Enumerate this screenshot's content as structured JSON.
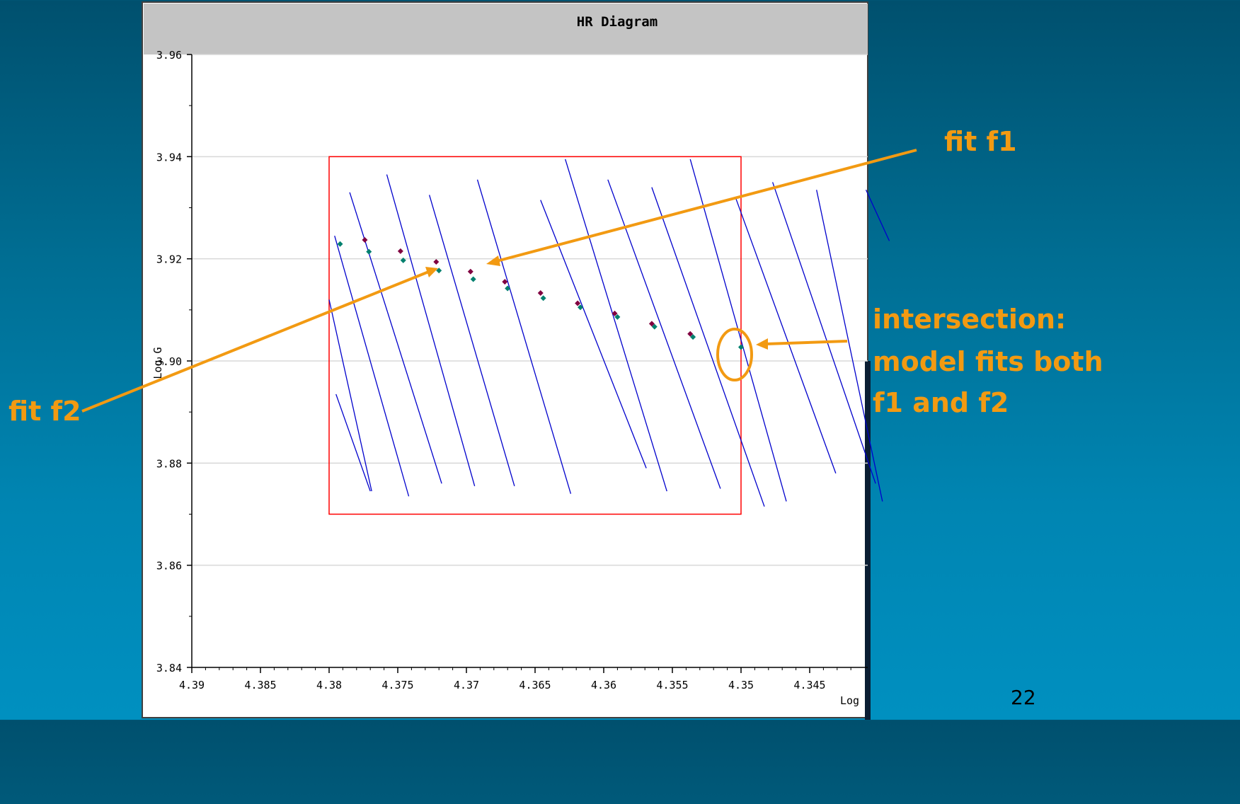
{
  "colors": {
    "background_top": "#00506e",
    "background_bottom": "#0090c0",
    "plot_panel": "#ffffff",
    "header_gray": "#c0c0c0",
    "grid": "#d8d8d8",
    "fit_line": "#0000cc",
    "box": "#ff0000",
    "point_f1": "#800040",
    "point_f2": "#00806e",
    "callout": "#f29a12",
    "page_number": "#000000"
  },
  "window": {
    "title": "HR Diagram"
  },
  "chart_data": {
    "type": "line",
    "title": "HR Diagram",
    "xlabel": "Log",
    "ylabel": "Log G",
    "xlim": [
      4.39,
      4.341
    ],
    "ylim": [
      3.84,
      3.96
    ],
    "x_axis_reversed": true,
    "grid": "horizontal",
    "x_ticks": [
      "4.39",
      "4.385",
      "4.38",
      "4.375",
      "4.37",
      "4.365",
      "4.36",
      "4.355",
      "4.35",
      "4.345"
    ],
    "y_ticks": [
      "3.84",
      "3.86",
      "3.88",
      "3.90",
      "3.92",
      "3.94",
      "3.96"
    ],
    "box": {
      "x": [
        4.38,
        4.35
      ],
      "y": [
        3.87,
        3.94
      ]
    },
    "lines": [
      [
        [
          4.38,
          3.912
        ],
        [
          4.3769,
          3.8745
        ]
      ],
      [
        [
          4.3796,
          3.9245
        ],
        [
          4.3742,
          3.8735
        ]
      ],
      [
        [
          4.3785,
          3.933
        ],
        [
          4.3718,
          3.876
        ]
      ],
      [
        [
          4.3758,
          3.9365
        ],
        [
          4.3694,
          3.8755
        ]
      ],
      [
        [
          4.3727,
          3.9325
        ],
        [
          4.3665,
          3.8755
        ]
      ],
      [
        [
          4.3692,
          3.9355
        ],
        [
          4.3624,
          3.874
        ]
      ],
      [
        [
          4.3646,
          3.9315
        ],
        [
          4.3569,
          3.879
        ]
      ],
      [
        [
          4.3628,
          3.9395
        ],
        [
          4.3554,
          3.8745
        ]
      ],
      [
        [
          4.3597,
          3.9355
        ],
        [
          4.3515,
          3.875
        ]
      ],
      [
        [
          4.3565,
          3.934
        ],
        [
          4.3483,
          3.8715
        ]
      ],
      [
        [
          4.3537,
          3.9395
        ],
        [
          4.3467,
          3.8725
        ]
      ],
      [
        [
          4.3504,
          3.932
        ],
        [
          4.3431,
          3.878
        ]
      ],
      [
        [
          4.3477,
          3.935
        ],
        [
          4.3402,
          3.876
        ]
      ],
      [
        [
          4.3445,
          3.9335
        ],
        [
          4.3397,
          3.8725
        ]
      ],
      [
        [
          4.3409,
          3.9335
        ],
        [
          4.3392,
          3.9235
        ]
      ],
      [
        [
          4.3795,
          3.8935
        ],
        [
          4.377,
          3.8745
        ]
      ]
    ],
    "series": [
      {
        "name": "f1",
        "x": [
          4.3774,
          4.3748,
          4.3722,
          4.3697,
          4.3672,
          4.3646,
          4.3619,
          4.3592,
          4.3565,
          4.3537
        ],
        "y": [
          3.9237,
          3.9215,
          3.9194,
          3.9175,
          3.9155,
          3.9133,
          3.9113,
          3.9093,
          3.9073,
          3.9053
        ]
      },
      {
        "name": "f2",
        "x": [
          4.3792,
          4.3771,
          4.3746,
          4.372,
          4.3695,
          4.367,
          4.3644,
          4.3617,
          4.359,
          4.3563,
          4.3535,
          4.35
        ],
        "y": [
          3.9229,
          3.9214,
          3.9197,
          3.9177,
          3.916,
          3.9142,
          3.9123,
          3.9105,
          3.9086,
          3.9067,
          3.9047,
          3.9027
        ]
      }
    ]
  },
  "annotations": {
    "fit_f1": "fit f1",
    "fit_f2": "fit f2",
    "intersection": [
      "intersection:",
      "model fits both",
      "f1 and f2"
    ]
  },
  "page_number": "22"
}
